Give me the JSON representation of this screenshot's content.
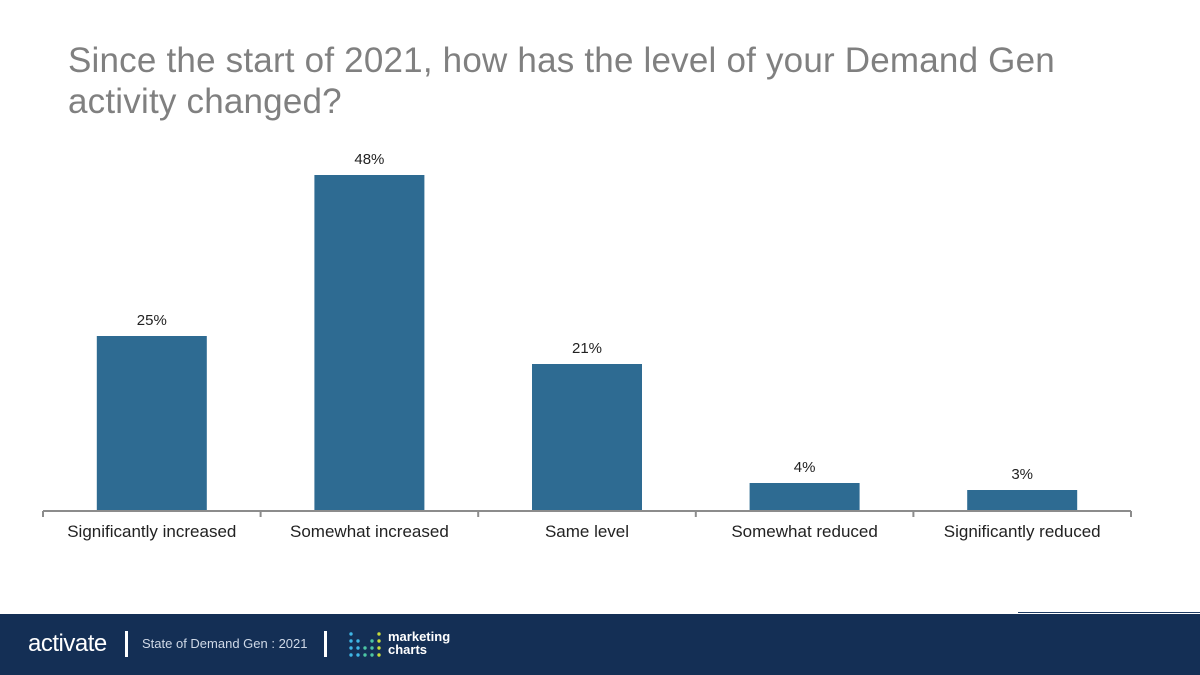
{
  "title": "Since the start of 2021, how has the level of your Demand Gen activity changed?",
  "chart_data": {
    "type": "bar",
    "categories": [
      "Significantly increased",
      "Somewhat increased",
      "Same level",
      "Somewhat reduced",
      "Significantly reduced"
    ],
    "values": [
      25,
      48,
      21,
      4,
      3
    ],
    "value_labels": [
      "25%",
      "48%",
      "21%",
      "4%",
      "3%"
    ],
    "ylim": [
      0,
      48
    ],
    "grid": false,
    "legend": "none",
    "bar_color": "#2e6b92"
  },
  "footer": {
    "brand": "activate",
    "report": "State of Demand Gen : 2021",
    "partner_line1": "marketing",
    "partner_line2": "charts",
    "background_color": "#142f55"
  }
}
